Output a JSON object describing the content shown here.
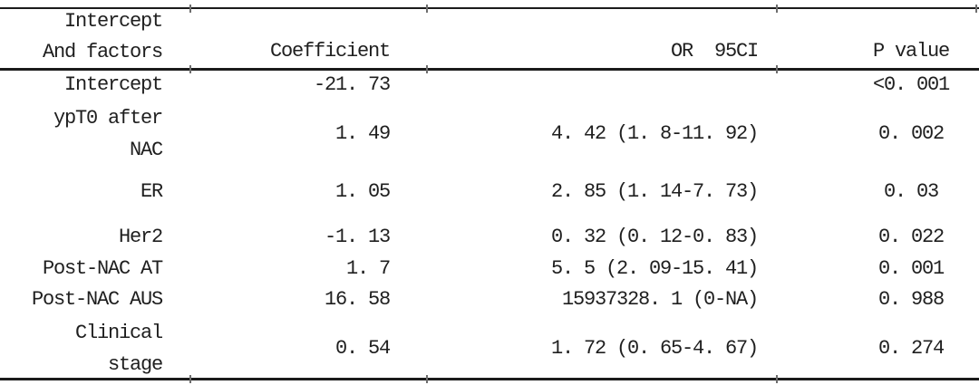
{
  "table": {
    "header": {
      "factor_line1": "Intercept",
      "factor_line2": "And factors",
      "coefficient": "Coefficient",
      "or_ci": "OR  95CI",
      "p_value": "P value"
    },
    "rows": [
      {
        "factor": "Intercept",
        "coefficient": "-21.73",
        "or_ci": "",
        "p_value": "<0.001"
      },
      {
        "factor_lines": [
          "ypT0 after",
          "NAC"
        ],
        "coefficient": "1.49",
        "or_ci": "4.42 (1.8-11.92)",
        "p_value": "0.002"
      },
      {
        "factor": "ER",
        "coefficient": "1.05",
        "or_ci": "2.85 (1.14-7.73)",
        "p_value": "0.03"
      },
      {
        "factor": "Her2",
        "coefficient": "-1.13",
        "or_ci": "0.32 (0.12-0.83)",
        "p_value": "0.022"
      },
      {
        "factor": "Post-NAC AT",
        "coefficient": "1.7",
        "or_ci": "5.5 (2.09-15.41)",
        "p_value": "0.001"
      },
      {
        "factor": "Post-NAC AUS",
        "coefficient": "16.58",
        "or_ci": "15937328.1 (0-NA)",
        "p_value": "0.988"
      },
      {
        "factor_lines": [
          "Clinical",
          "stage"
        ],
        "coefficient": "0.54",
        "or_ci": "1.72 (0.65-4.67)",
        "p_value": "0.274"
      }
    ]
  },
  "style": {
    "background_color": "#ffffff",
    "text_color": "#1f1f1f",
    "rule_color": "#1b1b1b"
  }
}
